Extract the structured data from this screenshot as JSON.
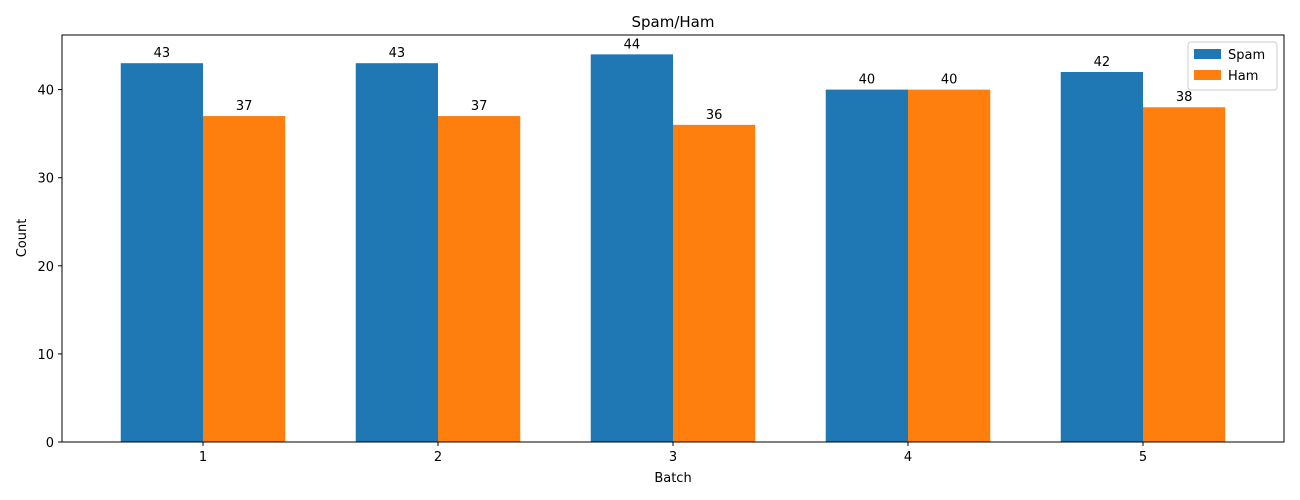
{
  "chart_data": {
    "type": "bar",
    "title": "Spam/Ham",
    "xlabel": "Batch",
    "ylabel": "Count",
    "categories": [
      "1",
      "2",
      "3",
      "4",
      "5"
    ],
    "series": [
      {
        "name": "Spam",
        "values": [
          43,
          43,
          44,
          40,
          42
        ],
        "color": "#1f77b4"
      },
      {
        "name": "Ham",
        "values": [
          37,
          37,
          36,
          40,
          38
        ],
        "color": "#ff7f0e"
      }
    ],
    "ylim": [
      0,
      46.2
    ],
    "yticks": [
      0,
      10,
      20,
      30,
      40
    ],
    "grid": false,
    "legend": "top-right",
    "data_labels": true
  }
}
